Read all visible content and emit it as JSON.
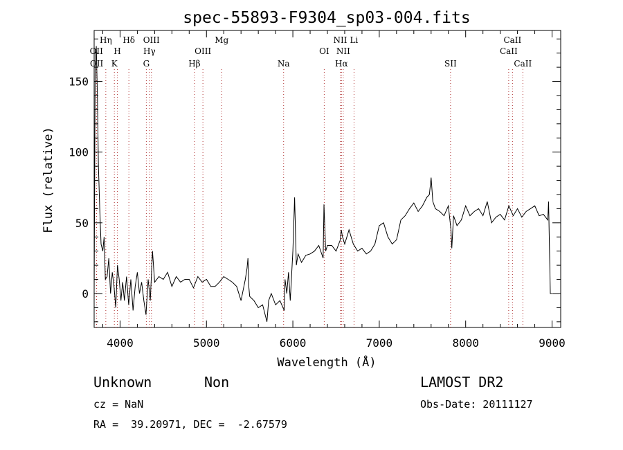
{
  "chart_data": {
    "type": "line",
    "title": "spec-55893-F9304_sp03-004.fits",
    "xlabel": "Wavelength (Å)",
    "ylabel": "Flux (relative)",
    "xlim": [
      3700,
      9100
    ],
    "ylim": [
      -24,
      186
    ],
    "xticks": [
      4000,
      5000,
      6000,
      7000,
      8000,
      9000
    ],
    "yticks": [
      0,
      50,
      100,
      150
    ],
    "grid": false,
    "series": [
      {
        "color": "#000000",
        "x": [
          3700,
          3712,
          3725,
          3738,
          3750,
          3765,
          3780,
          3800,
          3815,
          3830,
          3850,
          3870,
          3890,
          3910,
          3930,
          3950,
          3970,
          3990,
          4010,
          4030,
          4050,
          4075,
          4100,
          4125,
          4150,
          4175,
          4200,
          4225,
          4250,
          4275,
          4300,
          4325,
          4350,
          4375,
          4400,
          4450,
          4500,
          4550,
          4600,
          4650,
          4700,
          4750,
          4800,
          4850,
          4900,
          4950,
          5000,
          5050,
          5100,
          5150,
          5200,
          5250,
          5300,
          5350,
          5400,
          5450,
          5470,
          5480,
          5490,
          5500,
          5550,
          5600,
          5650,
          5700,
          5720,
          5750,
          5800,
          5850,
          5900,
          5910,
          5930,
          5950,
          5970,
          6000,
          6020,
          6040,
          6060,
          6080,
          6100,
          6150,
          6200,
          6250,
          6300,
          6350,
          6360,
          6380,
          6400,
          6450,
          6500,
          6550,
          6560,
          6575,
          6600,
          6650,
          6700,
          6750,
          6800,
          6850,
          6900,
          6950,
          7000,
          7050,
          7100,
          7150,
          7200,
          7250,
          7300,
          7350,
          7400,
          7450,
          7500,
          7550,
          7580,
          7600,
          7620,
          7650,
          7700,
          7750,
          7800,
          7830,
          7840,
          7860,
          7900,
          7950,
          8000,
          8050,
          8100,
          8150,
          8200,
          8250,
          8300,
          8350,
          8400,
          8450,
          8500,
          8550,
          8600,
          8650,
          8700,
          8750,
          8800,
          8850,
          8900,
          8950,
          8960,
          8980,
          9000
        ],
        "y": [
          0,
          160,
          175,
          140,
          90,
          60,
          35,
          30,
          40,
          10,
          12,
          25,
          0,
          15,
          5,
          -10,
          20,
          10,
          -5,
          8,
          -5,
          12,
          -8,
          10,
          -12,
          5,
          15,
          0,
          8,
          -5,
          -15,
          10,
          -5,
          30,
          8,
          12,
          10,
          15,
          5,
          12,
          8,
          10,
          10,
          4,
          12,
          8,
          10,
          5,
          5,
          8,
          12,
          10,
          8,
          5,
          -5,
          10,
          18,
          25,
          5,
          -2,
          -5,
          -10,
          -8,
          -20,
          -5,
          0,
          -8,
          -5,
          -12,
          10,
          0,
          15,
          -5,
          30,
          68,
          20,
          28,
          25,
          22,
          27,
          28,
          30,
          34,
          25,
          63,
          30,
          34,
          34,
          30,
          38,
          45,
          40,
          35,
          45,
          35,
          30,
          32,
          28,
          30,
          35,
          48,
          50,
          40,
          35,
          38,
          52,
          55,
          60,
          64,
          58,
          62,
          68,
          70,
          82,
          65,
          60,
          58,
          55,
          62,
          45,
          32,
          55,
          48,
          52,
          62,
          55,
          58,
          60,
          55,
          65,
          50,
          54,
          56,
          52,
          62,
          55,
          60,
          54,
          58,
          60,
          62,
          55,
          56,
          52,
          65,
          0,
          0
        ]
      }
    ],
    "lines": [
      {
        "wavelength": 3726,
        "label": "OII",
        "row": 2
      },
      {
        "wavelength": 3729,
        "label": "OII",
        "row": 3
      },
      {
        "wavelength": 3835,
        "label": "Hη",
        "row": 1
      },
      {
        "wavelength": 3934,
        "label": "K",
        "row": 3
      },
      {
        "wavelength": 3968,
        "label": "H",
        "row": 2
      },
      {
        "wavelength": 4102,
        "label": "Hδ",
        "row": 1
      },
      {
        "wavelength": 4304,
        "label": "G",
        "row": 3
      },
      {
        "wavelength": 4340,
        "label": "Hγ",
        "row": 2
      },
      {
        "wavelength": 4363,
        "label": "OIII",
        "row": 1
      },
      {
        "wavelength": 4861,
        "label": "Hβ",
        "row": 3
      },
      {
        "wavelength": 4959,
        "label": "OIII",
        "row": 2
      },
      {
        "wavelength": 5176,
        "label": "Mg",
        "row": 1
      },
      {
        "wavelength": 5893,
        "label": "Na",
        "row": 3
      },
      {
        "wavelength": 6363,
        "label": "OI",
        "row": 2
      },
      {
        "wavelength": 6548,
        "label": "NII",
        "row": 1
      },
      {
        "wavelength": 6563,
        "label": "Hα",
        "row": 3
      },
      {
        "wavelength": 6583,
        "label": "NII",
        "row": 2
      },
      {
        "wavelength": 6708,
        "label": "Li",
        "row": 1
      },
      {
        "wavelength": 7825,
        "label": "SII",
        "row": 3
      },
      {
        "wavelength": 8498,
        "label": "CaII",
        "row": 2
      },
      {
        "wavelength": 8542,
        "label": "CaII",
        "row": 1
      },
      {
        "wavelength": 8662,
        "label": "CaII",
        "row": 3
      }
    ]
  },
  "info": {
    "class": "Unknown",
    "subclass": "Non",
    "survey": "LAMOST DR2",
    "cz": "cz = NaN",
    "obs_date": "Obs-Date: 20111127",
    "coords": "RA =  39.20971, DEC =  -2.67579"
  }
}
